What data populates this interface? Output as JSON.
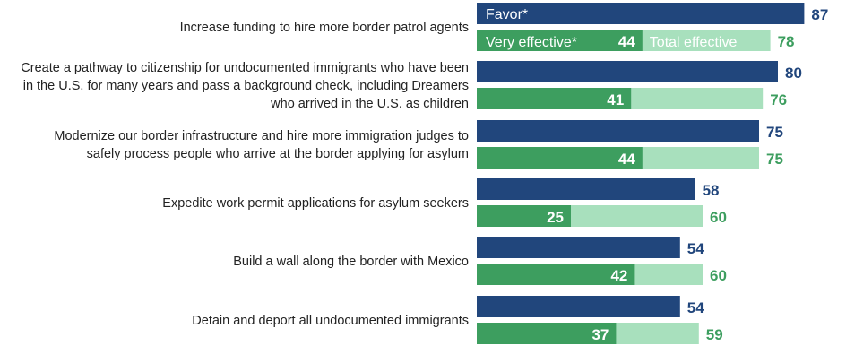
{
  "chart_data": {
    "type": "bar",
    "orientation": "horizontal",
    "xlim": [
      0,
      100
    ],
    "grid": false,
    "legend": {
      "placement": "inside-first-row",
      "favor": "Favor*",
      "very_effective": "Very effective*",
      "total_effective": "Total effective"
    },
    "categories": [
      [
        "Increase funding to hire more border patrol agents"
      ],
      [
        "Create a pathway to citizenship for undocumented immigrants who have been",
        "in the U.S. for many years and pass a background check, including Dreamers",
        "who arrived in the U.S. as children"
      ],
      [
        "Modernize our border infrastructure and hire more immigration judges to",
        "safely process people who arrive at the border applying for asylum"
      ],
      [
        "Expedite work permit applications for asylum seekers"
      ],
      [
        "Build a wall along the border with Mexico"
      ],
      [
        "Detain and deport all undocumented immigrants"
      ]
    ],
    "series": [
      {
        "name": "Favor*",
        "values": [
          87,
          80,
          75,
          58,
          54,
          54
        ]
      },
      {
        "name": "Very effective*",
        "values": [
          44,
          41,
          44,
          25,
          42,
          37
        ]
      },
      {
        "name": "Total effective",
        "values": [
          78,
          76,
          75,
          60,
          60,
          59
        ]
      }
    ]
  },
  "colors": {
    "favor": "#21467c",
    "very_effective": "#3d9e5f",
    "total_effective": "#a8e0bd",
    "favor_label": "#21467c",
    "total_label": "#3d9e5f",
    "divider": "#d6d6d6"
  }
}
